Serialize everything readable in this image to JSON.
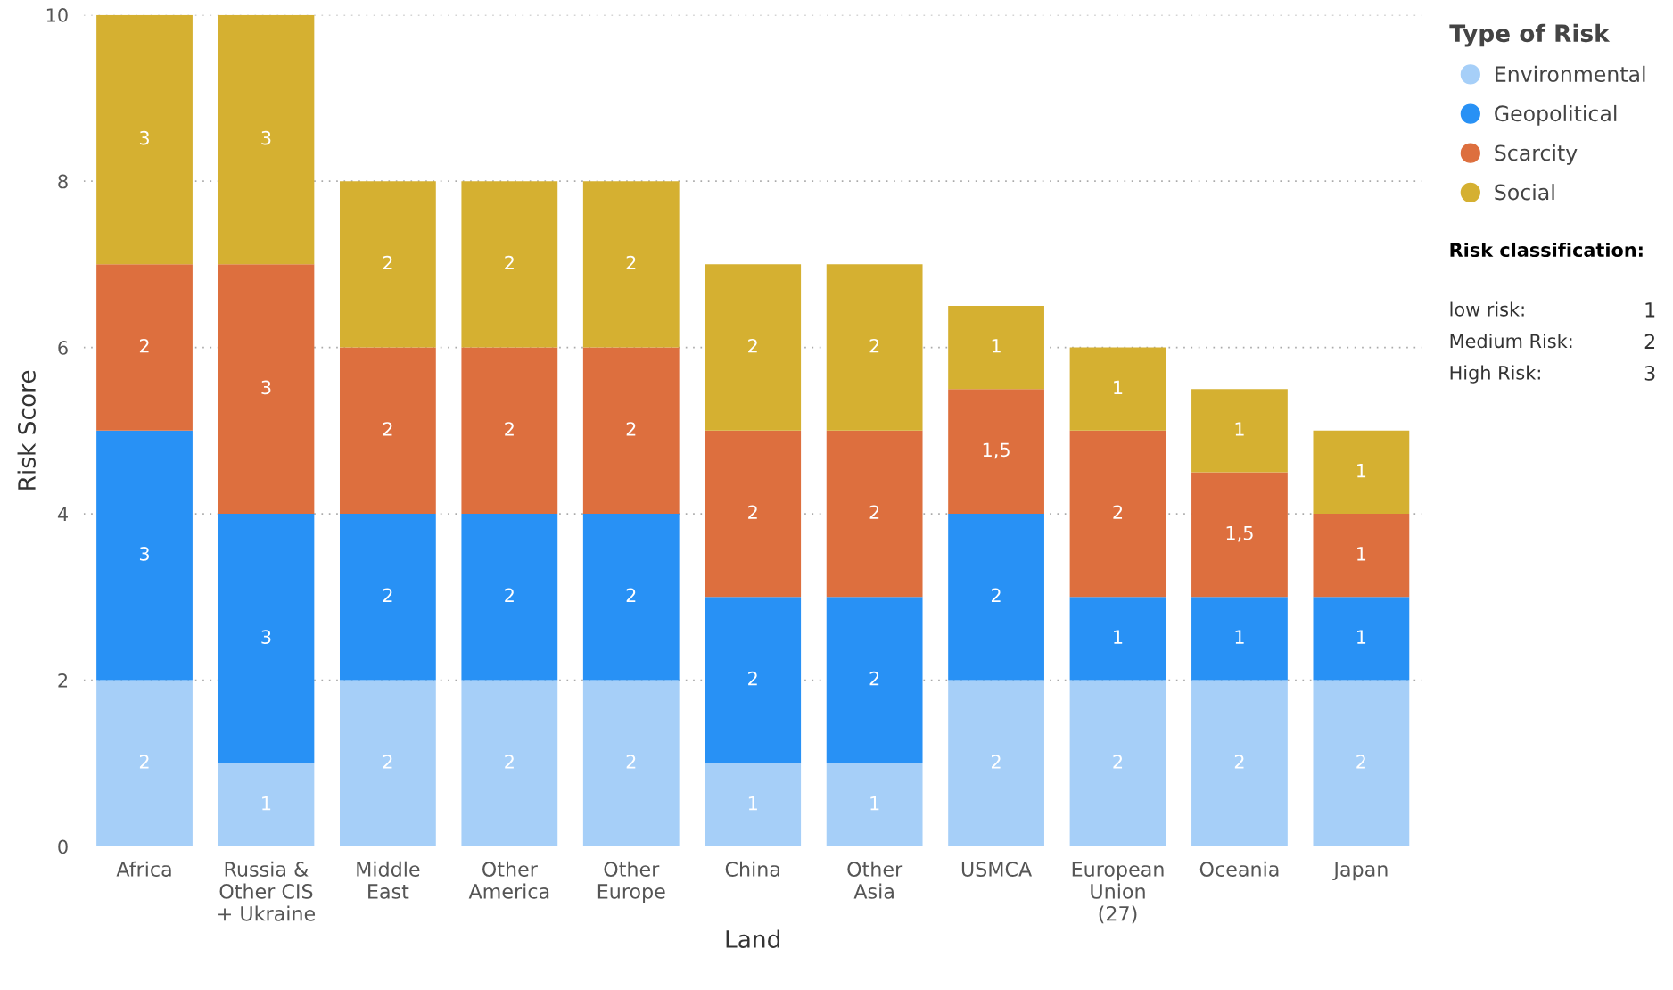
{
  "chart_data": {
    "type": "bar",
    "stacked": true,
    "xlabel": "Land",
    "ylabel": "Risk Score",
    "legend_title": "Type of Risk",
    "categories": [
      "Africa",
      "Russia &\nOther CIS\n+ Ukraine",
      "Middle\nEast",
      "Other\nAmerica",
      "Other\nEurope",
      "China",
      "Other\nAsia",
      "USMCA",
      "European\nUnion\n(27)",
      "Oceania",
      "Japan"
    ],
    "series": [
      {
        "name": "Environmental",
        "color": "#a6cff8",
        "values": [
          2,
          1,
          2,
          2,
          2,
          1,
          1,
          2,
          2,
          2,
          2
        ],
        "value_labels": [
          "2",
          "1",
          "2",
          "2",
          "2",
          "1",
          "1",
          "2",
          "2",
          "2",
          "2"
        ]
      },
      {
        "name": "Geopolitical",
        "color": "#2891f5",
        "values": [
          3,
          3,
          2,
          2,
          2,
          2,
          2,
          2,
          1,
          1,
          1
        ],
        "value_labels": [
          "3",
          "3",
          "2",
          "2",
          "2",
          "2",
          "2",
          "2",
          "1",
          "1",
          "1"
        ]
      },
      {
        "name": "Scarcity",
        "color": "#dd6f3e",
        "values": [
          2,
          3,
          2,
          2,
          2,
          2,
          2,
          1.5,
          2,
          1.5,
          1
        ],
        "value_labels": [
          "2",
          "3",
          "2",
          "2",
          "2",
          "2",
          "2",
          "1,5",
          "2",
          "1,5",
          "1"
        ]
      },
      {
        "name": "Social",
        "color": "#d5b031",
        "values": [
          3,
          3,
          2,
          2,
          2,
          2,
          2,
          1,
          1,
          1,
          1
        ],
        "value_labels": [
          "3",
          "3",
          "2",
          "2",
          "2",
          "2",
          "2",
          "1",
          "1",
          "1",
          "1"
        ]
      }
    ],
    "ylim": [
      0,
      10
    ],
    "yticks": [
      0,
      2,
      4,
      6,
      8,
      10
    ],
    "grid": "y",
    "legend": "top right",
    "annotations": [
      "Risk classification:",
      "low risk:",
      "1",
      "Medium Risk:",
      "2",
      "High Risk:",
      "3"
    ]
  }
}
